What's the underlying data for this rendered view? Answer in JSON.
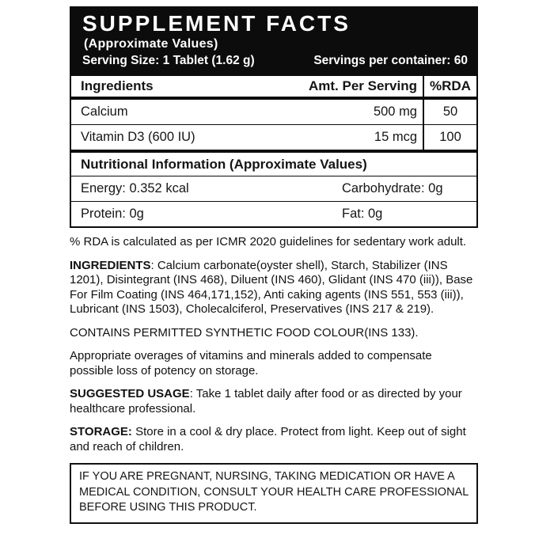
{
  "panel": {
    "header": {
      "title": "SUPPLEMENT FACTS",
      "subtitle": "(Approximate Values)",
      "serving_size": "Serving Size: 1 Tablet (1.62 g)",
      "servings_per_container": "Servings per container: 60"
    },
    "table": {
      "columns": [
        "Ingredients",
        "Amt. Per Serving",
        "%RDA"
      ],
      "rows": [
        {
          "name": "Calcium",
          "amount": "500 mg",
          "rda": "50"
        },
        {
          "name": "Vitamin D3 (600 IU)",
          "amount": "15 mcg",
          "rda": "100"
        }
      ],
      "nutrition_header": "Nutritional Information (Approximate Values)",
      "nutrition_rows": [
        {
          "left": "Energy: 0.352 kcal",
          "right": "Carbohydrate: 0g"
        },
        {
          "left": "Protein: 0g",
          "right": "Fat: 0g"
        }
      ]
    },
    "notes": {
      "rda_note": "% RDA  is calculated as per ICMR 2020 guidelines for sedentary work adult.",
      "ingredients_label": "INGREDIENTS",
      "ingredients_text": ": Calcium carbonate(oyster shell), Starch, Stabilizer (INS 1201), Disintegrant (INS 468), Diluent (INS 460), Glidant (INS 470 (iii)), Base For Film Coating (INS 464,171,152), Anti caking agents (INS 551, 553 (iii)), Lubricant (INS 1503), Cholecalciferol, Preservatives (INS 217 & 219).",
      "contains_note": "CONTAINS PERMITTED SYNTHETIC FOOD COLOUR(INS 133).",
      "overages_note": "Appropriate overages of vitamins and minerals added to compensate possible loss of potency on storage.",
      "usage_label": "SUGGESTED USAGE",
      "usage_text": ": Take 1 tablet daily after food or as directed by your healthcare professional.",
      "storage_label": "STORAGE:",
      "storage_text": " Store in a cool & dry place. Protect from light. Keep out of sight and reach of children.",
      "warning": "IF YOU ARE PREGNANT, NURSING, TAKING MEDICATION OR HAVE A MEDICAL CONDITION, CONSULT YOUR HEALTH CARE PROFESSIONAL BEFORE USING THIS PRODUCT."
    },
    "colors": {
      "panel_black": "#0c0c0c",
      "text": "#151515",
      "background": "#ffffff"
    }
  }
}
